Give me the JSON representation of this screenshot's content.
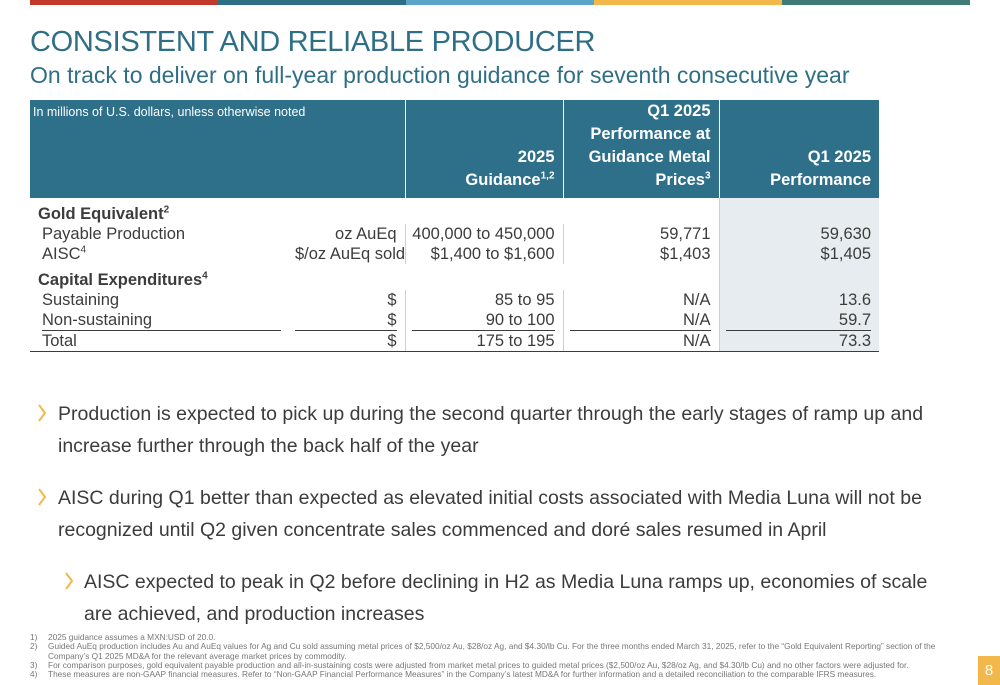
{
  "colors": {
    "accent": "#2f6f86",
    "header_bg": "#2e6f89",
    "shade_col": "#e6ecef",
    "page_badge": "#f2b84b",
    "topbar": [
      "#c0392b",
      "#2f6f86",
      "#5aa5c8",
      "#f2b84b",
      "#3f7b74"
    ]
  },
  "title": "CONSISTENT AND RELIABLE PRODUCER",
  "subtitle": "On track to deliver on full-year production guidance for seventh consecutive year",
  "table": {
    "note": "In millions of U.S. dollars, unless otherwise noted",
    "headers": {
      "guidance": "2025 Guidance",
      "guidance_sup": "1,2",
      "perf_guidance_l1": "Q1 2025",
      "perf_guidance_l2": "Performance at",
      "perf_guidance_l3": "Guidance Metal",
      "perf_guidance_l4": "Prices",
      "perf_guidance_sup": "3",
      "q1_l1": "Q1 2025",
      "q1_l2": "Performance"
    },
    "group1": {
      "label": "Gold Equivalent",
      "sup": "2"
    },
    "rows1": [
      {
        "label": "Payable Production",
        "sup": "",
        "unit": "oz AuEq",
        "guidance": "400,000 to 450,000",
        "at_guidance": "59,771",
        "q1": "59,630"
      },
      {
        "label": "AISC",
        "sup": "4",
        "unit": "$/oz AuEq sold",
        "guidance": "$1,400 to $1,600",
        "at_guidance": "$1,403",
        "q1": "$1,405"
      }
    ],
    "group2": {
      "label": "Capital Expenditures",
      "sup": "4"
    },
    "rows2": [
      {
        "label": "Sustaining",
        "unit": "$",
        "guidance": "85 to 95",
        "at_guidance": "N/A",
        "q1": "13.6"
      },
      {
        "label": "Non-sustaining",
        "unit": "$",
        "guidance": "90 to 100",
        "at_guidance": "N/A",
        "q1": "59.7"
      }
    ],
    "total": {
      "label": "Total",
      "unit": "$",
      "guidance": "175 to 195",
      "at_guidance": "N/A",
      "q1": "73.3"
    }
  },
  "bullets": [
    "Production is expected to pick up during the second quarter through the early stages of ramp up and increase further through the back half of the year",
    "AISC during Q1 better than expected as elevated initial costs associated with Media Luna will not be recognized until Q2 given concentrate sales commenced and doré sales resumed in April",
    "AISC expected to peak in Q2 before declining in H2 as Media Luna ramps up, economies of scale are achieved, and production increases"
  ],
  "footnotes": [
    {
      "num": "1)",
      "text": "2025 guidance assumes a MXN:USD of 20.0."
    },
    {
      "num": "2)",
      "text": "Guided AuEq production includes Au and AuEq values for Ag and Cu sold assuming metal prices of $2,500/oz Au, $28/oz Ag, and $4.30/lb Cu. For the three months ended March 31, 2025, refer to the “Gold Equivalent Reporting” section of the Company’s Q1 2025 MD&A for the relevant average market prices by commodity."
    },
    {
      "num": "3)",
      "text": "For comparison purposes, gold equivalent payable production and all-in-sustaining costs were adjusted from market metal prices to guided metal prices ($2,500/oz Au, $28/oz Ag, and $4.30/lb Cu) and no other factors were adjusted for."
    },
    {
      "num": "4)",
      "text": "These measures are non-GAAP financial measures. Refer to “Non-GAAP Financial Performance Measures” in the Company’s latest MD&A for further information and a detailed reconciliation to the comparable IFRS measures."
    }
  ],
  "page_number": "8"
}
